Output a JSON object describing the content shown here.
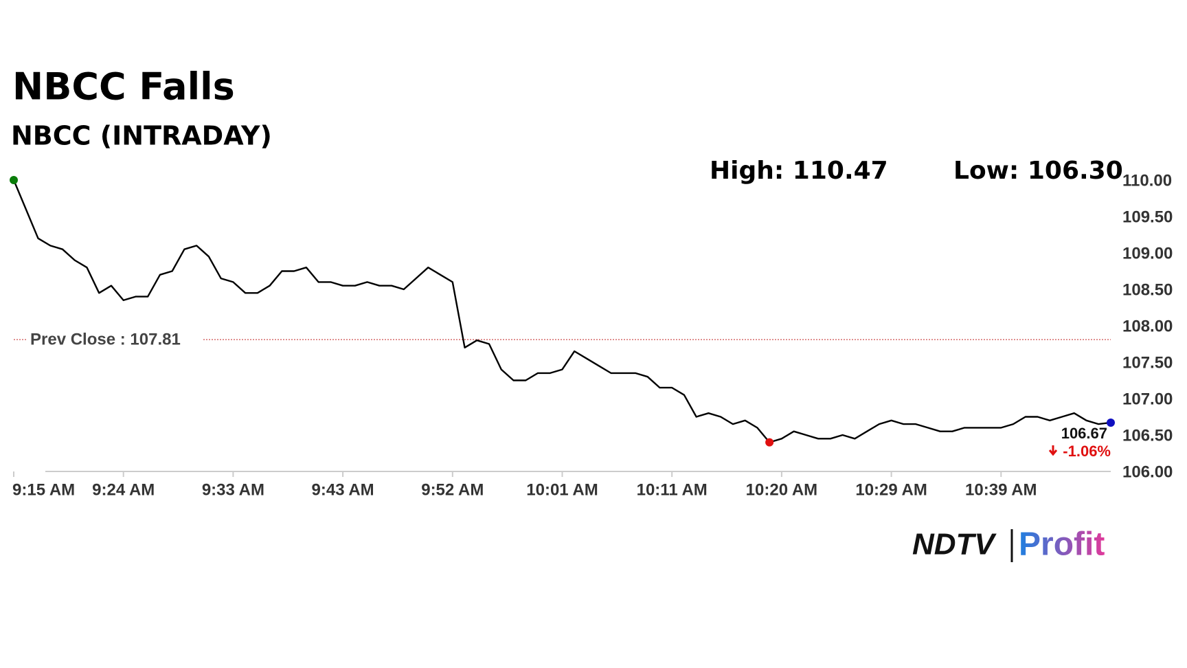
{
  "chart_data": {
    "type": "line",
    "title": "NBCC Falls",
    "subtitle": "NBCC (INTRADAY)",
    "high_label": "High: 110.47",
    "low_label": "Low: 106.30",
    "prev_close": {
      "value": 107.81,
      "label": "Prev Close : 107.81"
    },
    "last_label": "106.67",
    "change_label": "-1.06%",
    "brand": [
      "NDTV",
      "Profit"
    ],
    "series": [
      {
        "color": "#000000",
        "values": [
          110.0,
          109.6,
          109.2,
          109.1,
          109.05,
          108.9,
          108.8,
          108.45,
          108.55,
          108.35,
          108.4,
          108.4,
          108.7,
          108.75,
          109.05,
          109.1,
          108.95,
          108.65,
          108.6,
          108.45,
          108.45,
          108.55,
          108.75,
          108.75,
          108.8,
          108.6,
          108.6,
          108.55,
          108.55,
          108.6,
          108.55,
          108.55,
          108.5,
          108.65,
          108.8,
          108.7,
          108.6,
          107.7,
          107.8,
          107.75,
          107.4,
          107.25,
          107.25,
          107.35,
          107.35,
          107.4,
          107.65,
          107.55,
          107.45,
          107.35,
          107.35,
          107.35,
          107.3,
          107.15,
          107.15,
          107.05,
          106.75,
          106.8,
          106.75,
          106.65,
          106.7,
          106.6,
          106.4,
          106.45,
          106.55,
          106.5,
          106.45,
          106.45,
          106.5,
          106.45,
          106.55,
          106.65,
          106.7,
          106.65,
          106.65,
          106.6,
          106.55,
          106.55,
          106.6,
          106.6,
          106.6,
          106.6,
          106.65,
          106.75,
          106.75,
          106.7,
          106.75,
          106.8,
          106.7,
          106.65,
          106.67
        ]
      }
    ],
    "xlim": [
      0,
      90
    ],
    "xticks": [
      {
        "value": 0,
        "label": "9:15 AM"
      },
      {
        "value": 9,
        "label": "9:24 AM"
      },
      {
        "value": 18,
        "label": "9:33 AM"
      },
      {
        "value": 27,
        "label": "9:43 AM"
      },
      {
        "value": 36,
        "label": "9:52 AM"
      },
      {
        "value": 45,
        "label": "10:01 AM"
      },
      {
        "value": 54,
        "label": "10:11 AM"
      },
      {
        "value": 63,
        "label": "10:20 AM"
      },
      {
        "value": 72,
        "label": "10:29 AM"
      },
      {
        "value": 81,
        "label": "10:39 AM"
      }
    ],
    "ylim": [
      106,
      110
    ],
    "yticks": [
      {
        "value": 106,
        "label": "106.00"
      },
      {
        "value": 106.5,
        "label": "106.50"
      },
      {
        "value": 107,
        "label": "107.00"
      },
      {
        "value": 107.5,
        "label": "107.50"
      },
      {
        "value": 108,
        "label": "108.00"
      },
      {
        "value": 108.5,
        "label": "108.50"
      },
      {
        "value": 109,
        "label": "109.00"
      },
      {
        "value": 109.5,
        "label": "109.50"
      },
      {
        "value": 110,
        "label": "110.00"
      }
    ],
    "start_marker_color": "#0a7d0a",
    "low_marker_color": "#e01010",
    "last_marker_color": "#1010c0",
    "prev_close_color": "#c02020",
    "change_color": "#e01010"
  }
}
